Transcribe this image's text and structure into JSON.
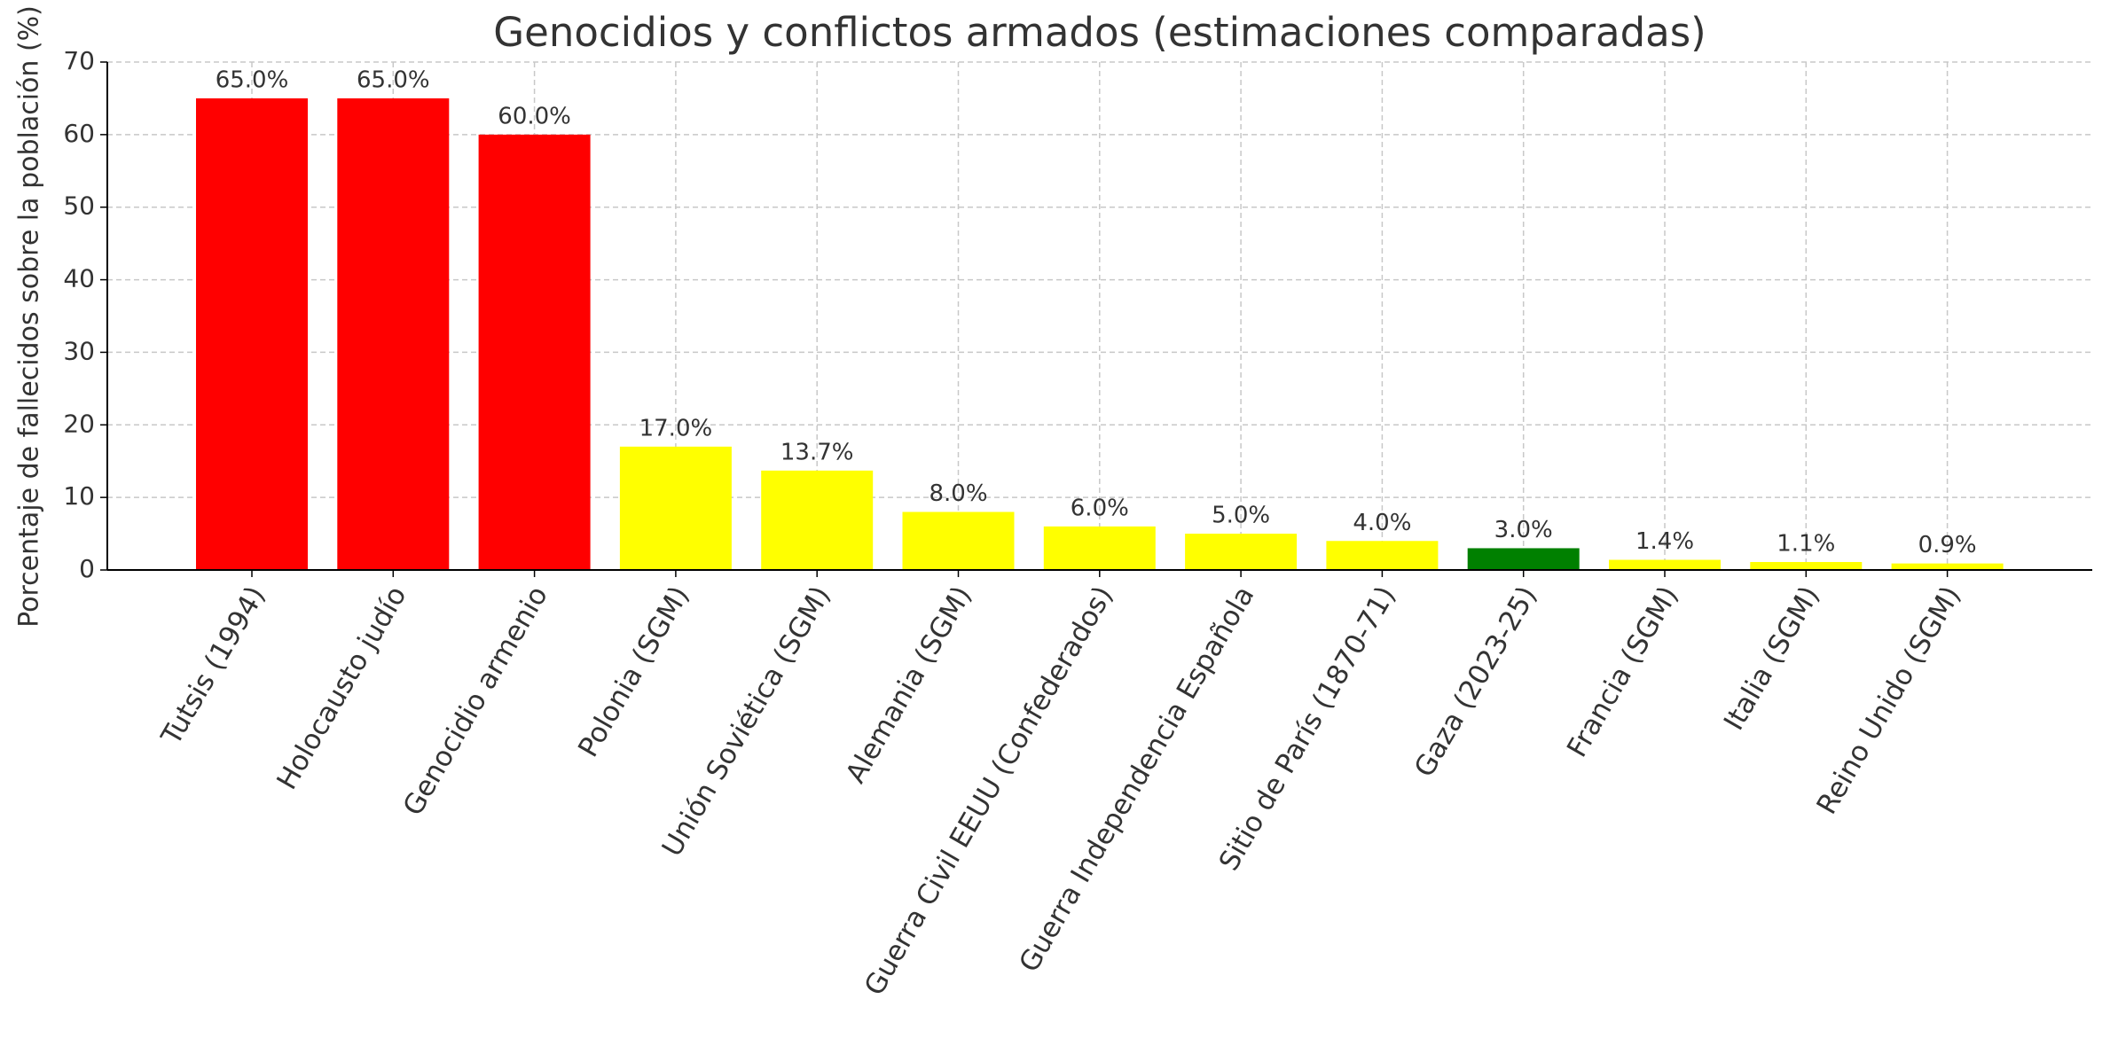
{
  "chart_data": {
    "type": "bar",
    "title": "Genocidios y conflictos armados (estimaciones comparadas)",
    "y_label": "Porcentaje de fallecidos sobre la población (%)",
    "categories": [
      "Tutsis (1994)",
      "Holocausto judío",
      "Genocidio armenio",
      "Polonia (SGM)",
      "Unión Soviética (SGM)",
      "Alemania (SGM)",
      "Guerra Civil EEUU (Confederados)",
      "Guerra Independencia Española",
      "Sitio de París (1870-71)",
      "Gaza (2023-25)",
      "Francia (SGM)",
      "Italia (SGM)",
      "Reino Unido (SGM)"
    ],
    "values": [
      65.0,
      65.0,
      60.0,
      17.0,
      13.7,
      8.0,
      6.0,
      5.0,
      4.0,
      3.0,
      1.4,
      1.1,
      0.9
    ],
    "value_labels": [
      "65.0%",
      "65.0%",
      "60.0%",
      "17.0%",
      "13.7%",
      "8.0%",
      "6.0%",
      "5.0%",
      "4.0%",
      "3.0%",
      "1.4%",
      "1.1%",
      "0.9%"
    ],
    "colors": [
      "#ff0000",
      "#ff0000",
      "#ff0000",
      "#ffff00",
      "#ffff00",
      "#ffff00",
      "#ffff00",
      "#ffff00",
      "#ffff00",
      "#008000",
      "#ffff00",
      "#ffff00",
      "#ffff00"
    ],
    "ylim": [
      0,
      70
    ],
    "yticks": [
      0,
      10,
      20,
      30,
      40,
      50,
      60,
      70
    ],
    "grid": true
  }
}
